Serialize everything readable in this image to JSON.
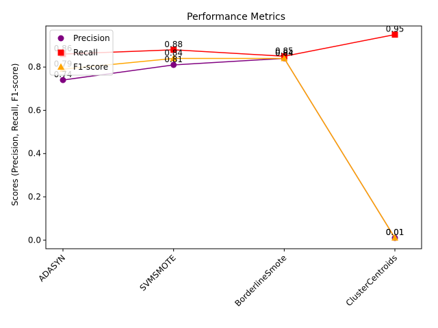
{
  "chart_data": {
    "type": "line",
    "title": "Performance Metrics",
    "xlabel": "",
    "ylabel": "Scores (Precision, Recall, F1-score)",
    "categories": [
      "ADASYN",
      "SVMSMOTE",
      "BorderlineSmote",
      "ClusterCentroids"
    ],
    "ylim": [
      -0.04,
      0.99
    ],
    "yticks": [
      0.0,
      0.2,
      0.4,
      0.6,
      0.8
    ],
    "grid": false,
    "legend_position": "upper-left",
    "series": [
      {
        "name": "Precision",
        "values": [
          0.74,
          0.81,
          0.84,
          0.01
        ],
        "labels": [
          "0.74",
          "0.81",
          "0.84",
          "0.01"
        ],
        "color": "#800080",
        "marker": "circle"
      },
      {
        "name": "Recall",
        "values": [
          0.86,
          0.88,
          0.85,
          0.95
        ],
        "labels": [
          "0.86",
          "0.88",
          "0.85",
          "0.95"
        ],
        "color": "#ff0000",
        "marker": "square"
      },
      {
        "name": "F1-score",
        "values": [
          0.79,
          0.84,
          0.84,
          0.01
        ],
        "labels": [
          "0.79",
          "0.84",
          "0.84",
          "0.01"
        ],
        "color": "#ffa500",
        "marker": "triangle"
      }
    ]
  }
}
